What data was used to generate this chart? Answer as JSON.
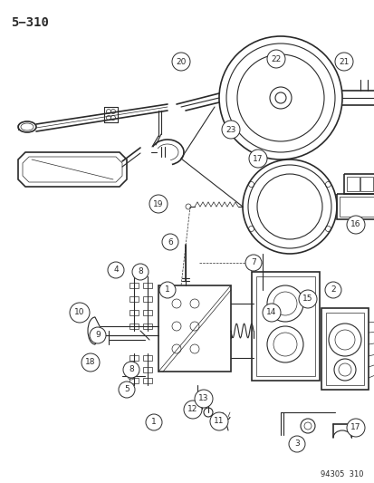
{
  "title": "5−310",
  "watermark": "94305  310",
  "bg_color": "#ffffff",
  "line_color": "#2a2a2a",
  "label_fontsize": 6.5,
  "title_fontsize": 10,
  "title_font": "monospace"
}
